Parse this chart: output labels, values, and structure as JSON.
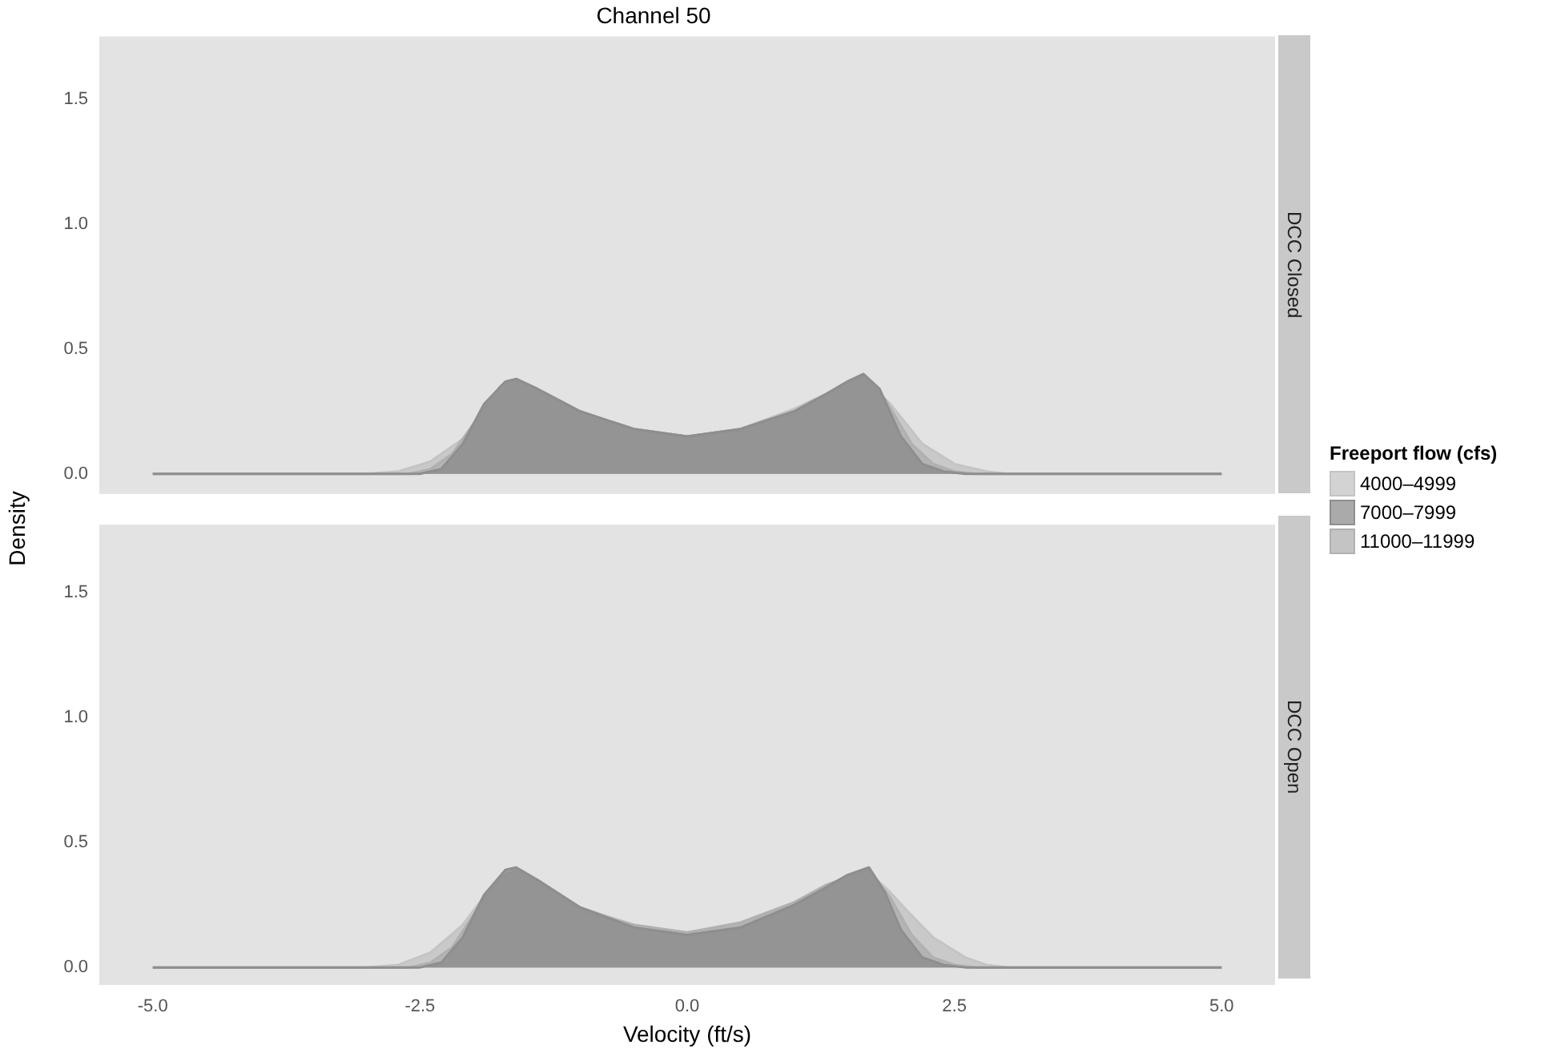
{
  "chart_data": [
    {
      "type": "area",
      "title": "Channel 50",
      "ylabel": "Density",
      "legend_title": "Freeport flow (cfs)",
      "legend": "right",
      "annotations": [
        "DCC Closed"
      ],
      "tick_labels": "y",
      "grid": false,
      "xlim": [
        -5.5,
        5.5
      ],
      "ylim": [
        -0.08,
        1.75
      ],
      "yticks": [
        {
          "value": 0,
          "label": "0.0"
        },
        {
          "value": 0.5,
          "label": "0.5"
        },
        {
          "value": 1,
          "label": "1.0"
        },
        {
          "value": 1.5,
          "label": "1.5"
        }
      ],
      "series": [
        {
          "name": "4000–4999",
          "color": "#c4c4c4",
          "x": [
            -5,
            -3,
            -2.7,
            -2.4,
            -2.1,
            -1.8,
            -1.6,
            -1.4,
            -1,
            -0.5,
            0,
            0.5,
            1,
            1.4,
            1.65,
            1.9,
            2.2,
            2.5,
            2.8,
            3,
            5
          ],
          "values": [
            0,
            0,
            0.01,
            0.05,
            0.14,
            0.3,
            0.37,
            0.34,
            0.25,
            0.18,
            0.15,
            0.18,
            0.26,
            0.34,
            0.38,
            0.28,
            0.12,
            0.04,
            0.01,
            0,
            0
          ]
        },
        {
          "name": "7000–7999",
          "color": "#8e8e8e",
          "x": [
            -5,
            -2.5,
            -2.3,
            -2.1,
            -1.9,
            -1.7,
            -1.6,
            -1.4,
            -1,
            -0.5,
            0,
            0.5,
            1,
            1.3,
            1.5,
            1.65,
            1.8,
            2,
            2.2,
            2.4,
            2.6,
            5
          ],
          "values": [
            0,
            0,
            0.02,
            0.12,
            0.28,
            0.37,
            0.38,
            0.34,
            0.25,
            0.18,
            0.15,
            0.18,
            0.25,
            0.32,
            0.37,
            0.4,
            0.34,
            0.15,
            0.04,
            0.01,
            0,
            0
          ]
        },
        {
          "name": "11000–11999",
          "color": "#b0b0b0",
          "x": [
            -5,
            -2.6,
            -2.4,
            -2.2,
            -2,
            -1.75,
            -1.6,
            -1.4,
            -1,
            -0.5,
            0,
            0.5,
            1,
            1.3,
            1.55,
            1.65,
            1.85,
            2.1,
            2.3,
            2.5,
            2.7,
            5
          ],
          "values": [
            0,
            0,
            0.02,
            0.08,
            0.2,
            0.35,
            0.38,
            0.34,
            0.25,
            0.18,
            0.15,
            0.18,
            0.25,
            0.32,
            0.38,
            0.39,
            0.3,
            0.12,
            0.04,
            0.01,
            0,
            0
          ]
        }
      ]
    },
    {
      "type": "area",
      "xlabel": "Velocity (ft/s)",
      "annotations": [
        "DCC Open"
      ],
      "grid": false,
      "xlim": [
        -5.5,
        5.5
      ],
      "xticks": [
        {
          "value": -5,
          "label": "-5.0"
        },
        {
          "value": -2.5,
          "label": "-2.5"
        },
        {
          "value": 0,
          "label": "0.0"
        },
        {
          "value": 2.5,
          "label": "2.5"
        },
        {
          "value": 5,
          "label": "5.0"
        }
      ],
      "ylim": [
        -0.07,
        1.77
      ],
      "yticks": [
        {
          "value": 0,
          "label": "0.0"
        },
        {
          "value": 0.5,
          "label": "0.5"
        },
        {
          "value": 1,
          "label": "1.0"
        },
        {
          "value": 1.5,
          "label": "1.5"
        }
      ],
      "series": [
        {
          "color": "#c4c4c4",
          "x": [
            -5,
            -3,
            -2.7,
            -2.4,
            -2.1,
            -1.8,
            -1.6,
            -1.4,
            -1,
            -0.5,
            0,
            0.5,
            1,
            1.4,
            1.7,
            1.9,
            2.05,
            2.3,
            2.6,
            2.8,
            3,
            5
          ],
          "values": [
            0,
            0,
            0.01,
            0.06,
            0.17,
            0.34,
            0.38,
            0.34,
            0.24,
            0.17,
            0.14,
            0.17,
            0.25,
            0.33,
            0.38,
            0.3,
            0.23,
            0.12,
            0.04,
            0.01,
            0,
            0
          ]
        },
        {
          "color": "#8e8e8e",
          "x": [
            -5,
            -2.5,
            -2.3,
            -2.1,
            -1.9,
            -1.7,
            -1.6,
            -1.4,
            -1,
            -0.5,
            0,
            0.5,
            1,
            1.3,
            1.5,
            1.7,
            1.85,
            2,
            2.2,
            2.4,
            2.6,
            5
          ],
          "values": [
            0,
            0,
            0.02,
            0.12,
            0.29,
            0.39,
            0.4,
            0.35,
            0.24,
            0.16,
            0.13,
            0.16,
            0.25,
            0.32,
            0.37,
            0.4,
            0.3,
            0.15,
            0.04,
            0.01,
            0,
            0
          ]
        },
        {
          "color": "#b0b0b0",
          "x": [
            -5,
            -2.6,
            -2.4,
            -2.2,
            -2,
            -1.75,
            -1.6,
            -1.4,
            -1,
            -0.5,
            0,
            0.5,
            1,
            1.3,
            1.55,
            1.7,
            1.9,
            2.1,
            2.3,
            2.5,
            2.7,
            5
          ],
          "values": [
            0,
            0,
            0.02,
            0.08,
            0.21,
            0.36,
            0.39,
            0.34,
            0.23,
            0.17,
            0.14,
            0.18,
            0.26,
            0.33,
            0.37,
            0.39,
            0.28,
            0.13,
            0.04,
            0.01,
            0,
            0
          ]
        }
      ]
    }
  ]
}
